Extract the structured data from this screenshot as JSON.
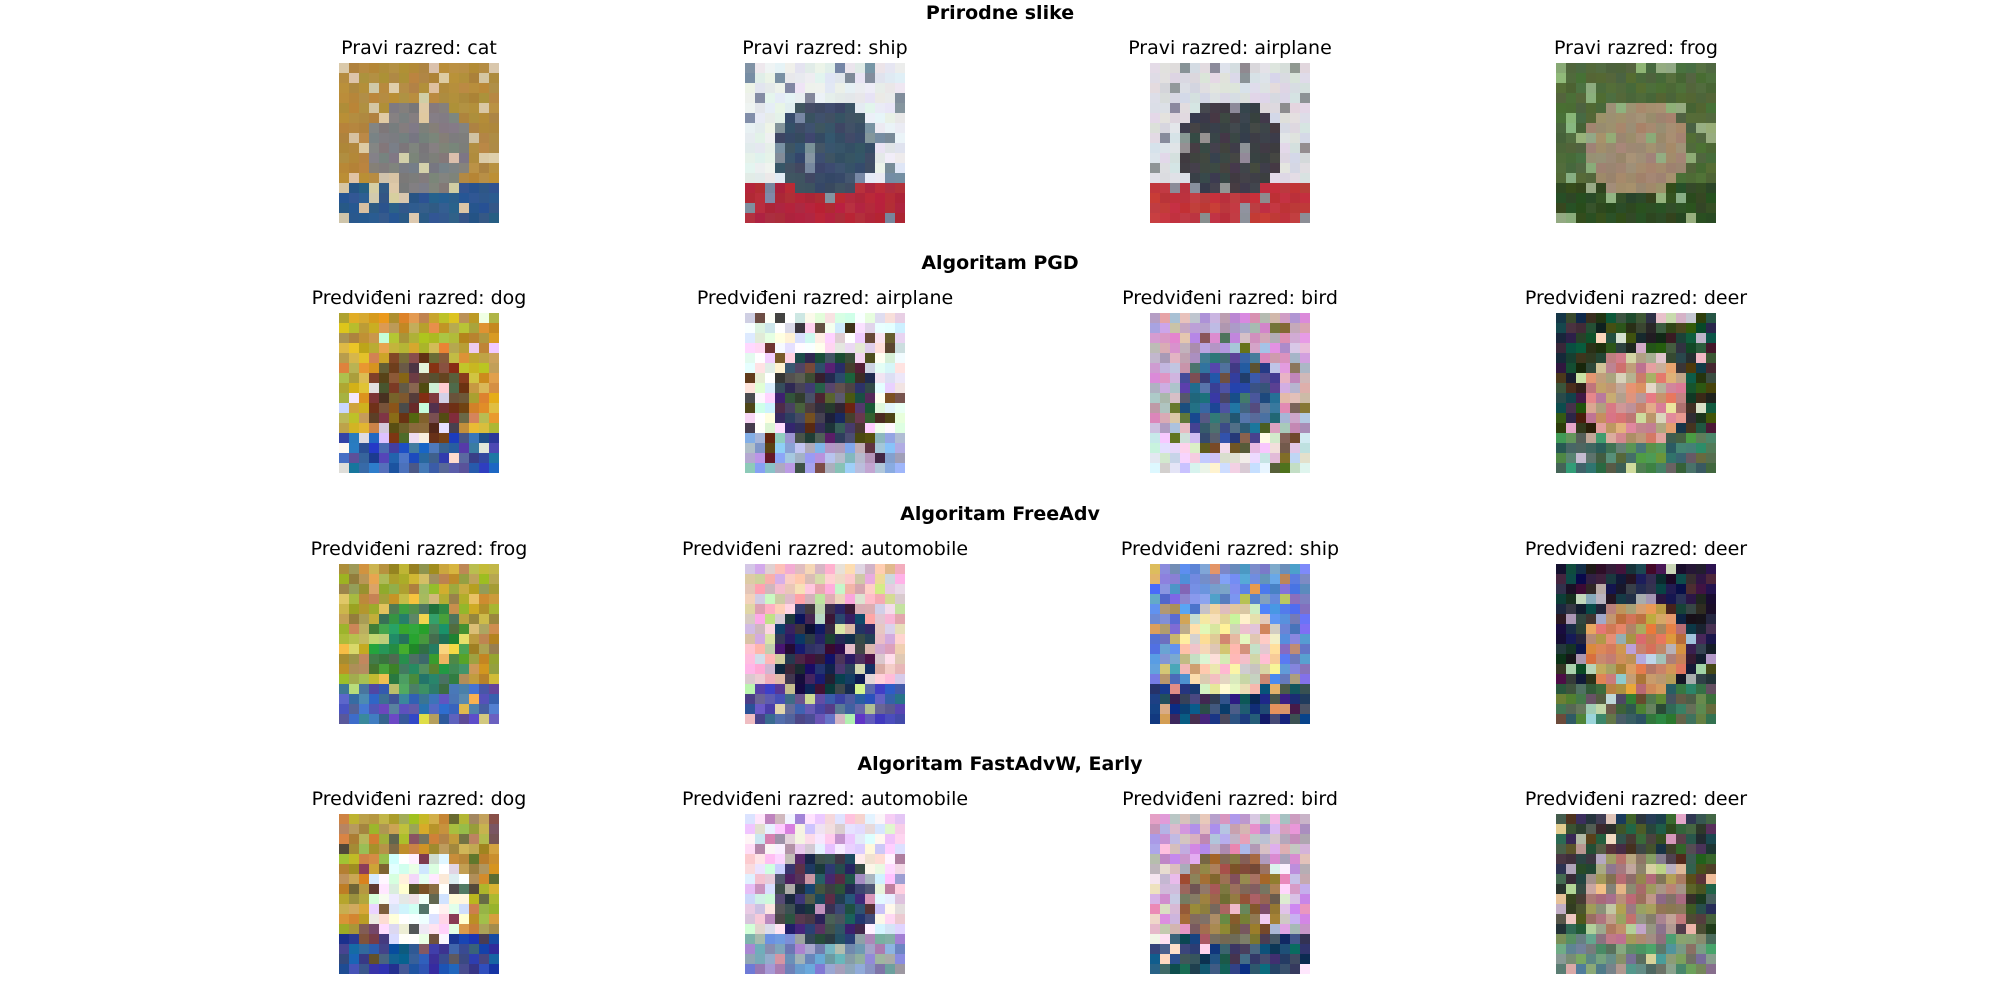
{
  "rows": [
    {
      "title": "Prirodne slike",
      "images": [
        {
          "caption": "Pravi razred: cat",
          "subject": "cat",
          "colors": [
            "#b38a3e",
            "#7d7e80",
            "#2c5a8c",
            "#d8c8a8"
          ]
        },
        {
          "caption": "Pravi razred: ship",
          "subject": "ship",
          "colors": [
            "#e8ecef",
            "#3c4e68",
            "#b3283a",
            "#7d8ea0"
          ]
        },
        {
          "caption": "Pravi razred: airplane",
          "subject": "airplane",
          "colors": [
            "#dcdde2",
            "#3e4147",
            "#c0373c",
            "#8e9096"
          ]
        },
        {
          "caption": "Pravi razred: frog",
          "subject": "frog",
          "colors": [
            "#4e6a3a",
            "#a08a70",
            "#2f4b22",
            "#8fb07e"
          ]
        }
      ]
    },
    {
      "title": "Algoritam PGD",
      "images": [
        {
          "caption": "Predviđeni razred: dog",
          "subject": "dog",
          "colors": [
            "#c9a43a",
            "#6a4a2e",
            "#3a5aa8",
            "#e0e0ea"
          ]
        },
        {
          "caption": "Predviđeni razred: airplane",
          "subject": "airplane",
          "colors": [
            "#eef0f4",
            "#3c4050",
            "#a0b4d8",
            "#5c3a2e"
          ]
        },
        {
          "caption": "Predviđeni razred: bird",
          "subject": "bird",
          "colors": [
            "#c8a8c8",
            "#3a5a8a",
            "#e0d8e8",
            "#6a5a3a"
          ]
        },
        {
          "caption": "Predviđeni razred: deer",
          "subject": "deer",
          "colors": [
            "#2a3a2a",
            "#c89080",
            "#4a7a5a",
            "#e0c8b8"
          ]
        }
      ]
    },
    {
      "title": "Algoritam FreeAdv",
      "images": [
        {
          "caption": "Predviđeni razred: frog",
          "subject": "frog",
          "colors": [
            "#b0a040",
            "#3a8a4a",
            "#4a68b0",
            "#d8c060"
          ]
        },
        {
          "caption": "Predviđeni razred: automobile",
          "subject": "automobile",
          "colors": [
            "#f0c0c8",
            "#2a2a50",
            "#4a58a8",
            "#d0d8a8"
          ]
        },
        {
          "caption": "Predviđeni razred: ship",
          "subject": "ship",
          "colors": [
            "#6a88d8",
            "#e8d8b8",
            "#2a3a6a",
            "#c8a870"
          ]
        },
        {
          "caption": "Predviđeni razred: deer",
          "subject": "deer",
          "colors": [
            "#2a2a3a",
            "#c88a5a",
            "#4a6a4a",
            "#a8b8c8"
          ]
        }
      ]
    },
    {
      "title": "Algoritam FastAdvW, Early",
      "images": [
        {
          "caption": "Predviđeni razred: dog",
          "subject": "dog",
          "colors": [
            "#b8a040",
            "#f0f0f0",
            "#2a4a9a",
            "#6a5a4a"
          ]
        },
        {
          "caption": "Predviđeni razred: automobile",
          "subject": "automobile",
          "colors": [
            "#e8e0f0",
            "#3a4058",
            "#8a98c0",
            "#c0a0c0"
          ]
        },
        {
          "caption": "Predviđeni razred: bird",
          "subject": "bird",
          "colors": [
            "#c8a8d0",
            "#8a6a4a",
            "#2a4a6a",
            "#e8d8e0"
          ]
        },
        {
          "caption": "Predviđeni razred: deer",
          "subject": "deer",
          "colors": [
            "#3a4a3a",
            "#a08a70",
            "#6a8a7a",
            "#d0b8a8"
          ]
        }
      ]
    }
  ]
}
